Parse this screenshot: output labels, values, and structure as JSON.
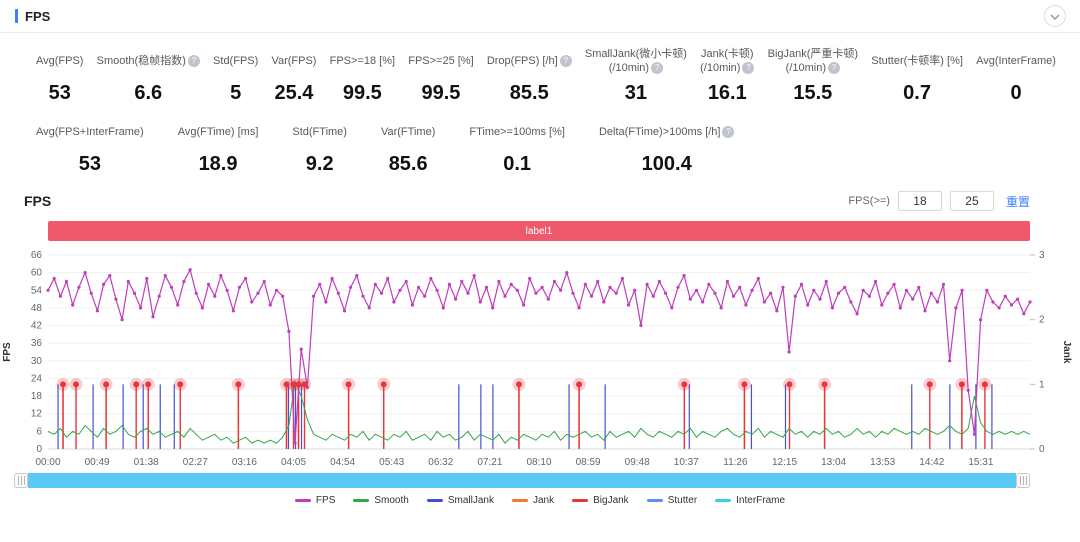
{
  "header": {
    "title": "FPS"
  },
  "metrics_row1": [
    {
      "label": "Avg(FPS)",
      "value": "53",
      "help": false
    },
    {
      "label": "Smooth(稳帧指数)",
      "value": "6.6",
      "help": true
    },
    {
      "label": "Std(FPS)",
      "value": "5",
      "help": false
    },
    {
      "label": "Var(FPS)",
      "value": "25.4",
      "help": false
    },
    {
      "label": "FPS>=18 [%]",
      "value": "99.5",
      "help": false
    },
    {
      "label": "FPS>=25 [%]",
      "value": "99.5",
      "help": false
    },
    {
      "label": "Drop(FPS) [/h]",
      "value": "85.5",
      "help": true
    },
    {
      "label": "SmallJank(微小卡顿)",
      "label2": "(/10min)",
      "value": "31",
      "help": true
    },
    {
      "label": "Jank(卡顿)",
      "label2": "(/10min)",
      "value": "16.1",
      "help": true
    },
    {
      "label": "BigJank(严重卡顿)",
      "label2": "(/10min)",
      "value": "15.5",
      "help": true
    },
    {
      "label": "Stutter(卡顿率) [%]",
      "value": "0.7",
      "help": false
    },
    {
      "label": "Avg(InterFrame)",
      "value": "0",
      "help": false
    }
  ],
  "metrics_row2": [
    {
      "label": "Avg(FPS+InterFrame)",
      "value": "53",
      "help": false
    },
    {
      "label": "Avg(FTime) [ms]",
      "value": "18.9",
      "help": false
    },
    {
      "label": "Std(FTime)",
      "value": "9.2",
      "help": false
    },
    {
      "label": "Var(FTime)",
      "value": "85.6",
      "help": false
    },
    {
      "label": "FTime>=100ms [%]",
      "value": "0.1",
      "help": false
    },
    {
      "label": "Delta(FTime)>100ms [/h]",
      "value": "100.4",
      "help": true
    }
  ],
  "chart_section": {
    "title": "FPS",
    "filter_label": "FPS(>=)",
    "input1": "18",
    "input2": "25",
    "reset_label": "重置",
    "banner_label": "label1"
  },
  "legend": [
    {
      "name": "FPS",
      "color": "#bf3eba"
    },
    {
      "name": "Smooth",
      "color": "#35a546"
    },
    {
      "name": "SmallJank",
      "color": "#4150d8"
    },
    {
      "name": "Jank",
      "color": "#f2762c"
    },
    {
      "name": "BigJank",
      "color": "#e9353e"
    },
    {
      "name": "Stutter",
      "color": "#5b8ff9"
    },
    {
      "name": "InterFrame",
      "color": "#36cfe3"
    }
  ],
  "colors": {
    "accent_blue": "#3d7eff",
    "banner_red": "#f0596b",
    "scrollbar_cyan": "#5bc9f5"
  },
  "chart_data": {
    "type": "line",
    "title": "FPS",
    "x_axis": {
      "labels": [
        "00:00",
        "00:49",
        "01:38",
        "02:27",
        "03:16",
        "04:05",
        "04:54",
        "05:43",
        "06:32",
        "07:21",
        "08:10",
        "08:59",
        "09:48",
        "10:37",
        "11:26",
        "12:15",
        "13:04",
        "13:53",
        "14:42",
        "15:31"
      ],
      "interval_seconds": 49,
      "total_seconds": 980
    },
    "y_left": {
      "label": "FPS",
      "ticks": [
        0,
        6,
        12,
        18,
        24,
        30,
        36,
        42,
        48,
        54,
        60,
        66
      ],
      "range": [
        0,
        66
      ]
    },
    "y_right": {
      "label": "Jank",
      "ticks": [
        0,
        1,
        2,
        3
      ],
      "range": [
        0,
        3
      ]
    },
    "series": [
      {
        "name": "FPS",
        "color": "#bf3eba",
        "values": [
          54,
          58,
          52,
          57,
          49,
          55,
          60,
          53,
          47,
          56,
          59,
          51,
          44,
          57,
          53,
          48,
          58,
          45,
          52,
          59,
          55,
          49,
          57,
          61,
          53,
          48,
          56,
          52,
          59,
          54,
          47,
          55,
          58,
          50,
          53,
          57,
          49,
          54,
          52,
          40,
          2,
          34,
          21,
          52,
          56,
          50,
          58,
          53,
          47,
          55,
          59,
          52,
          48,
          56,
          53,
          58,
          50,
          54,
          57,
          49,
          55,
          52,
          58,
          54,
          48,
          56,
          51,
          57,
          53,
          59,
          50,
          55,
          48,
          57,
          52,
          56,
          54,
          49,
          58,
          53,
          55,
          51,
          57,
          54,
          60,
          53,
          48,
          56,
          52,
          57,
          50,
          55,
          53,
          58,
          49,
          54,
          42,
          56,
          52,
          57,
          53,
          48,
          55,
          59,
          51,
          54,
          50,
          56,
          53,
          48,
          57,
          52,
          55,
          49,
          54,
          58,
          50,
          53,
          47,
          55,
          33,
          52,
          56,
          49,
          54,
          51,
          57,
          48,
          53,
          55,
          50,
          46,
          54,
          52,
          57,
          49,
          53,
          56,
          48,
          54,
          51,
          55,
          47,
          53,
          50,
          56,
          30,
          48,
          54,
          20,
          5,
          44,
          54,
          50,
          48,
          52,
          49,
          51,
          46,
          50
        ]
      },
      {
        "name": "Smooth",
        "color": "#35a546",
        "values": [
          6,
          5,
          7,
          4,
          6,
          5,
          8,
          6,
          4,
          7,
          5,
          6,
          8,
          5,
          4,
          6,
          7,
          5,
          6,
          4,
          5,
          6,
          4,
          7,
          5,
          3,
          4,
          5,
          3,
          4,
          2,
          3,
          4,
          2,
          3,
          2,
          3,
          2,
          4,
          8,
          23,
          18,
          10,
          5,
          4,
          3,
          5,
          4,
          3,
          5,
          4,
          6,
          3,
          5,
          4,
          3,
          5,
          4,
          6,
          3,
          4,
          5,
          3,
          6,
          4,
          5,
          3,
          4,
          6,
          3,
          5,
          4,
          3,
          5,
          2,
          4,
          3,
          5,
          4,
          3,
          5,
          4,
          6,
          3,
          5,
          4,
          5,
          6,
          4,
          5,
          3,
          6,
          4,
          5,
          6,
          4,
          7,
          5,
          4,
          6,
          5,
          4,
          6,
          5,
          7,
          4,
          6,
          5,
          4,
          6,
          7,
          5,
          4,
          6,
          5,
          7,
          4,
          6,
          5,
          4,
          7,
          5,
          6,
          4,
          6,
          5,
          7,
          5,
          6,
          4,
          5,
          7,
          5,
          6,
          4,
          6,
          5,
          7,
          6,
          5,
          6,
          5,
          7,
          6,
          5,
          6,
          8,
          6,
          5,
          7,
          18,
          9,
          6,
          5,
          6,
          5,
          6,
          5,
          6,
          5
        ]
      }
    ],
    "events": {
      "small_jank": {
        "color": "#4150d8",
        "jank_level": 1,
        "times": [
          10,
          45,
          75,
          95,
          112,
          126,
          240,
          247,
          253,
          410,
          432,
          444,
          520,
          556,
          640,
          702,
          736,
          862,
          900,
          926,
          942
        ]
      },
      "jank": {
        "color": "#f2762c",
        "jank_level": 1,
        "times": [
          15,
          58,
          100,
          190,
          238,
          250,
          300,
          335,
          470,
          530,
          695,
          775,
          912
        ]
      },
      "big_jank": {
        "color": "#e9353e",
        "jank_level": 1,
        "times": [
          15,
          28,
          58,
          88,
          100,
          132,
          190,
          238,
          245,
          250,
          256,
          300,
          335,
          470,
          530,
          635,
          695,
          740,
          775,
          880,
          912,
          935
        ]
      }
    },
    "legend_position": "bottom",
    "grid": true
  }
}
